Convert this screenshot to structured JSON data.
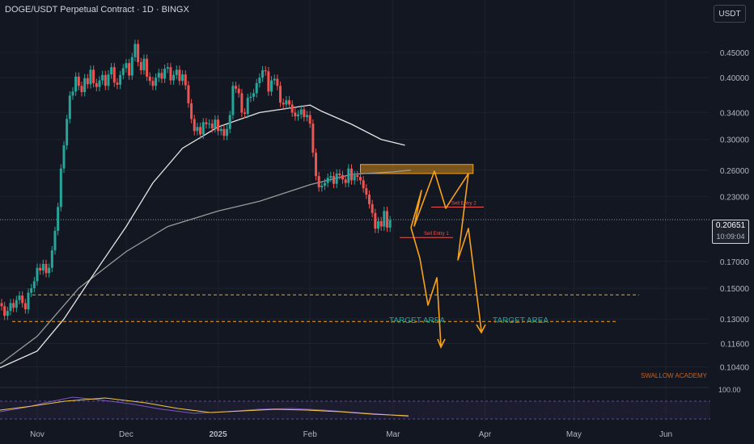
{
  "header": {
    "title": "DOGE/USDT Perpetual Contract · 1D · BINGX",
    "currency_button": "USDT"
  },
  "last_price": {
    "value": "0.20651",
    "countdown": "10:09:04"
  },
  "colors": {
    "background": "#131722",
    "up": "#26a69a",
    "down": "#ef5350",
    "orange": "#f7a21b",
    "ma_slow": "#e6e6e6",
    "ma_fast": "#9a9a9a",
    "teal_text": "#26a69a",
    "sell_red": "#ef5350",
    "rsi_line": "#7e57c2",
    "rsi_signal": "#f2c744",
    "brand": "#c8611d"
  },
  "annotations": {
    "sell_entry_1": "Sell Entry 1",
    "sell_entry_2": "Sell Entry 2",
    "target_area_left": "TARGET AREA",
    "target_area_right": "TARGET AREA",
    "watermark": "SWALLOW ACADEMY"
  },
  "chart_data": {
    "type": "candlestick",
    "title": "DOGE/USDT Perpetual Contract · 1D · BINGX",
    "y_scale": "log",
    "y_axis": {
      "ticks": [
        0.45,
        0.4,
        0.34,
        0.3,
        0.26,
        0.23,
        0.17,
        0.15,
        0.13,
        0.116,
        0.104
      ],
      "tick_labels": [
        "0.45000",
        "0.40000",
        "0.34000",
        "0.30000",
        "0.26000",
        "0.23000",
        "0.17000",
        "0.15000",
        "0.13000",
        "0.11600",
        "0.10400"
      ]
    },
    "x_axis": {
      "tick_labels": [
        "Nov",
        "Dec",
        "2025",
        "Feb",
        "Mar",
        "Apr",
        "May",
        "Jun"
      ],
      "tick_dates": [
        "2024-11-01",
        "2024-12-01",
        "2025-01-01",
        "2025-02-01",
        "2025-03-01",
        "2025-04-01",
        "2025-05-01",
        "2025-06-01"
      ]
    },
    "candles_start_date": "2024-10-04",
    "candles_end_date": "2025-03-07",
    "closes": [
      0.11,
      0.112,
      0.108,
      0.106,
      0.109,
      0.112,
      0.11,
      0.114,
      0.118,
      0.116,
      0.12,
      0.125,
      0.122,
      0.126,
      0.133,
      0.14,
      0.138,
      0.132,
      0.135,
      0.14,
      0.137,
      0.142,
      0.145,
      0.14,
      0.136,
      0.147,
      0.15,
      0.155,
      0.165,
      0.163,
      0.168,
      0.161,
      0.165,
      0.179,
      0.196,
      0.219,
      0.262,
      0.292,
      0.33,
      0.368,
      0.375,
      0.402,
      0.385,
      0.374,
      0.399,
      0.388,
      0.415,
      0.39,
      0.383,
      0.395,
      0.405,
      0.385,
      0.406,
      0.42,
      0.391,
      0.387,
      0.405,
      0.418,
      0.428,
      0.404,
      0.44,
      0.468,
      0.43,
      0.414,
      0.437,
      0.402,
      0.394,
      0.385,
      0.4,
      0.409,
      0.398,
      0.417,
      0.42,
      0.395,
      0.405,
      0.415,
      0.394,
      0.406,
      0.386,
      0.355,
      0.33,
      0.312,
      0.318,
      0.307,
      0.325,
      0.322,
      0.323,
      0.316,
      0.329,
      0.312,
      0.315,
      0.305,
      0.315,
      0.336,
      0.385,
      0.38,
      0.372,
      0.34,
      0.338,
      0.364,
      0.366,
      0.372,
      0.39,
      0.4,
      0.414,
      0.412,
      0.375,
      0.395,
      0.398,
      0.385,
      0.356,
      0.353,
      0.36,
      0.353,
      0.34,
      0.334,
      0.337,
      0.345,
      0.333,
      0.336,
      0.323,
      0.282,
      0.253,
      0.24,
      0.242,
      0.245,
      0.251,
      0.253,
      0.244,
      0.256,
      0.254,
      0.249,
      0.245,
      0.262,
      0.248,
      0.254,
      0.252,
      0.248,
      0.239,
      0.232,
      0.222,
      0.213,
      0.198,
      0.205,
      0.2,
      0.215,
      0.199,
      0.206
    ],
    "ma_slow_closes": [
      0.095,
      0.104,
      0.112,
      0.13,
      0.16,
      0.2,
      0.245,
      0.288,
      0.318,
      0.34,
      0.352,
      0.342,
      0.322,
      0.3,
      0.292
    ],
    "ma_slow_dates": [
      "2024-10-04",
      "2024-10-20",
      "2024-11-01",
      "2024-11-10",
      "2024-11-20",
      "2024-12-01",
      "2024-12-10",
      "2024-12-20",
      "2025-01-01",
      "2025-01-15",
      "2025-02-01",
      "2025-02-05",
      "2025-02-15",
      "2025-02-25",
      "2025-03-05"
    ],
    "ma_fast_closes": [
      0.097,
      0.106,
      0.12,
      0.15,
      0.178,
      0.2,
      0.215,
      0.225,
      0.243,
      0.255,
      0.258,
      0.26
    ],
    "ma_fast_dates": [
      "2024-10-04",
      "2024-10-20",
      "2024-11-01",
      "2024-11-15",
      "2024-12-01",
      "2024-12-15",
      "2025-01-01",
      "2025-01-15",
      "2025-02-01",
      "2025-02-15",
      "2025-03-01",
      "2025-03-07"
    ],
    "sell_zone": {
      "from_date": "2025-02-18",
      "to_date": "2025-03-28",
      "low": 0.256,
      "high": 0.267
    },
    "sell_entry_1": 0.19,
    "sell_entry_2": 0.219,
    "target_levels": [
      0.1455,
      0.1285
    ],
    "last_price": 0.20651,
    "rsi_axis_label": "100.00"
  }
}
